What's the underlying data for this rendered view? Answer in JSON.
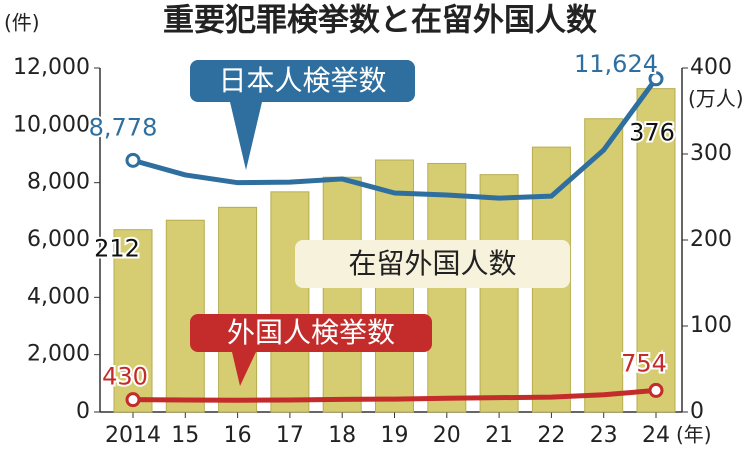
{
  "chart_data": {
    "type": "bar",
    "title": "重要犯罪検挙数と在留外国人数",
    "y_label": "(件)",
    "y2_label": "(万人)",
    "x_label": "(年)",
    "categories": [
      "2014",
      "15",
      "16",
      "17",
      "18",
      "19",
      "20",
      "21",
      "22",
      "23",
      "24"
    ],
    "series": [
      {
        "name": "在留外国人数",
        "type": "bar",
        "axis": "y2",
        "color": "#d6cd72",
        "values": [
          212,
          223,
          238,
          256,
          273,
          293,
          289,
          276,
          308,
          341,
          376
        ],
        "value_labels": [
          "212",
          null,
          null,
          null,
          null,
          null,
          null,
          null,
          null,
          null,
          "376"
        ]
      },
      {
        "name": "日本人検挙数",
        "type": "line",
        "color": "#2f6f9f",
        "values": [
          8778,
          8270,
          8000,
          8020,
          8130,
          7640,
          7570,
          7460,
          7530,
          9140,
          11624
        ],
        "value_labels": [
          "8,778",
          null,
          null,
          null,
          null,
          null,
          null,
          null,
          null,
          null,
          "11,624"
        ]
      },
      {
        "name": "外国人検挙数",
        "type": "line",
        "color": "#c42b2b",
        "values": [
          430,
          420,
          410,
          420,
          440,
          450,
          480,
          500,
          520,
          600,
          754
        ],
        "value_labels": [
          "430",
          null,
          null,
          null,
          null,
          null,
          null,
          null,
          null,
          null,
          "754"
        ]
      }
    ],
    "ylim": [
      0,
      12000
    ],
    "yticks": [
      0,
      {
        "value": 2000,
        "label": "2,000"
      },
      {
        "value": 4000,
        "label": "4,000"
      },
      {
        "value": 6000,
        "label": "6,000"
      },
      {
        "value": 8000,
        "label": "8,000"
      },
      {
        "value": 10000,
        "label": "10,000"
      },
      {
        "value": 12000,
        "label": "12,000"
      }
    ],
    "y2lim": [
      0,
      400
    ],
    "y2ticks": [
      0,
      100,
      200,
      300,
      400
    ]
  }
}
